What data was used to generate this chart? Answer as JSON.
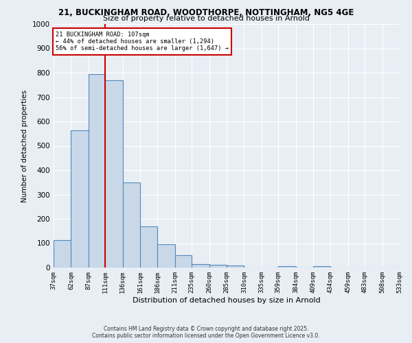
{
  "title_line1": "21, BUCKINGHAM ROAD, WOODTHORPE, NOTTINGHAM, NG5 4GE",
  "title_line2": "Size of property relative to detached houses in Arnold",
  "xlabel": "Distribution of detached houses by size in Arnold",
  "ylabel": "Number of detached properties",
  "categories": [
    "37sqm",
    "62sqm",
    "87sqm",
    "111sqm",
    "136sqm",
    "161sqm",
    "186sqm",
    "211sqm",
    "235sqm",
    "260sqm",
    "285sqm",
    "310sqm",
    "335sqm",
    "359sqm",
    "384sqm",
    "409sqm",
    "434sqm",
    "459sqm",
    "483sqm",
    "508sqm",
    "533sqm"
  ],
  "bar_edges": [
    37,
    62,
    87,
    111,
    136,
    161,
    186,
    211,
    235,
    260,
    285,
    310,
    335,
    359,
    384,
    409,
    434,
    459,
    483,
    508,
    533
  ],
  "bar_counts": [
    112,
    562,
    793,
    770,
    348,
    168,
    97,
    52,
    15,
    12,
    8,
    0,
    0,
    5,
    0,
    5,
    0,
    0,
    0,
    0,
    0
  ],
  "bar_color": "#c8d8e8",
  "bar_edge_color": "#5588bb",
  "vline_x": 111,
  "vline_color": "#cc0000",
  "ylim": [
    0,
    1000
  ],
  "yticks": [
    0,
    100,
    200,
    300,
    400,
    500,
    600,
    700,
    800,
    900,
    1000
  ],
  "annotation_box_text_line1": "21 BUCKINGHAM ROAD: 107sqm",
  "annotation_box_text_line2": "← 44% of detached houses are smaller (1,294)",
  "annotation_box_text_line3": "56% of semi-detached houses are larger (1,647) →",
  "annotation_box_color": "#cc0000",
  "annotation_box_facecolor": "white",
  "bg_color": "#e8eef4",
  "footer_line1": "Contains HM Land Registry data © Crown copyright and database right 2025.",
  "footer_line2": "Contains public sector information licensed under the Open Government Licence v3.0."
}
